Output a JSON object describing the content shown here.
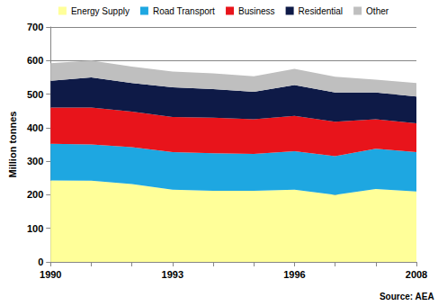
{
  "chart_data": {
    "type": "area",
    "y_label": "Million tonnes",
    "annotation": "Source: AEA",
    "categories": [
      "1990",
      null,
      null,
      "1993",
      null,
      null,
      "1996",
      null,
      null,
      "2008"
    ],
    "series": [
      {
        "name": "Energy Supply",
        "color": "#FFFF99",
        "values": [
          243,
          242,
          232,
          215,
          212,
          212,
          215,
          200,
          217,
          210
        ]
      },
      {
        "name": "Road Transport",
        "color": "#1EA7E1",
        "values": [
          109,
          108,
          110,
          112,
          112,
          110,
          115,
          115,
          120,
          117
        ]
      },
      {
        "name": "Business",
        "color": "#E8141B",
        "values": [
          108,
          110,
          106,
          105,
          106,
          103,
          105,
          103,
          88,
          86
        ]
      },
      {
        "name": "Residential",
        "color": "#0E1A47",
        "values": [
          80,
          90,
          85,
          88,
          85,
          82,
          92,
          87,
          80,
          80
        ]
      },
      {
        "name": "Other",
        "color": "#BFBFBF",
        "values": [
          52,
          50,
          49,
          47,
          47,
          46,
          48,
          47,
          38,
          40
        ]
      }
    ],
    "ylim": [
      0,
      700
    ],
    "yticks": [
      0,
      100,
      200,
      300,
      400,
      500,
      600,
      700
    ],
    "grid": true,
    "stacked": true,
    "legend": "top"
  }
}
